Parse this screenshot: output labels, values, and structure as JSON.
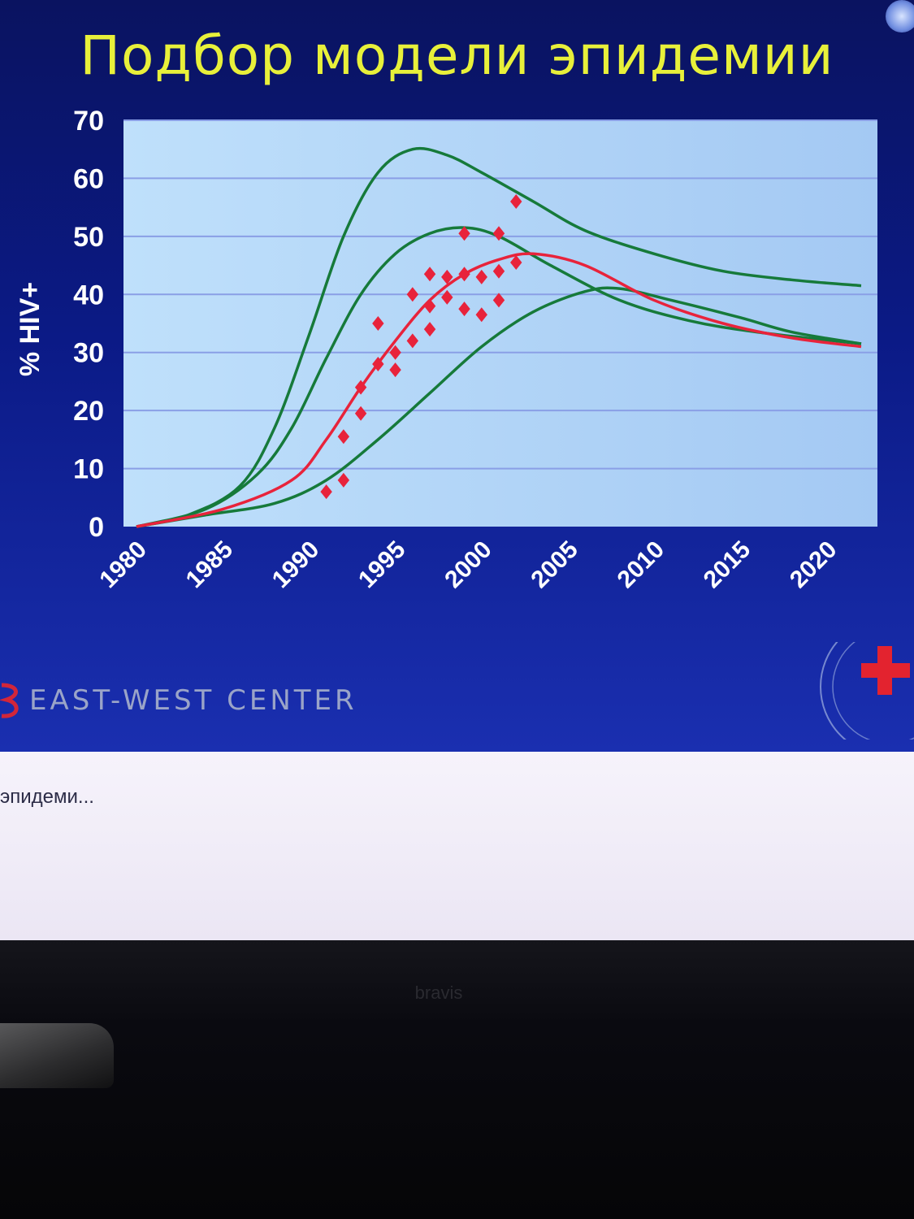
{
  "slide": {
    "title": "Подбор модели эпидемии",
    "logo_text": "EAST-WEST CENTER"
  },
  "taskbar": {
    "label": "эпидеми..."
  },
  "monitor": {
    "brand": "bravis"
  },
  "colors": {
    "title": "#e8f03a",
    "plot_background": "#aed2f7",
    "green_lines": "#167a3a",
    "red_line": "#e8233b",
    "points": "#e8233b"
  },
  "icons": {
    "corner": "globe-icon",
    "emblem": "red-cross-icon"
  },
  "chart_data": {
    "type": "line",
    "title": "Подбор модели эпидемии",
    "xlabel": "",
    "ylabel": "% HIV+",
    "xlim": [
      1980,
      2022
    ],
    "ylim": [
      0,
      70
    ],
    "x_ticks": [
      "1980",
      "1985",
      "1990",
      "1995",
      "2000",
      "2005",
      "2010",
      "2015",
      "2020"
    ],
    "y_ticks": [
      "0",
      "10",
      "20",
      "30",
      "40",
      "50",
      "60",
      "70"
    ],
    "grid": true,
    "legend": "none",
    "series": [
      {
        "kind": "line",
        "color": "#167a3a",
        "points": [
          [
            1980,
            0
          ],
          [
            1983,
            2
          ],
          [
            1986,
            7
          ],
          [
            1988,
            17
          ],
          [
            1990,
            33
          ],
          [
            1992,
            50
          ],
          [
            1994,
            61
          ],
          [
            1996,
            65
          ],
          [
            1998,
            64
          ],
          [
            2000,
            61
          ],
          [
            2003,
            56
          ],
          [
            2006,
            51
          ],
          [
            2010,
            47
          ],
          [
            2014,
            44
          ],
          [
            2018,
            42.5
          ],
          [
            2022,
            41.5
          ]
        ]
      },
      {
        "kind": "line",
        "color": "#167a3a",
        "points": [
          [
            1980,
            0
          ],
          [
            1984,
            3
          ],
          [
            1987,
            9
          ],
          [
            1989,
            17
          ],
          [
            1991,
            29
          ],
          [
            1993,
            40
          ],
          [
            1995,
            47
          ],
          [
            1997,
            50.5
          ],
          [
            1999,
            51.5
          ],
          [
            2001,
            50
          ],
          [
            2004,
            45
          ],
          [
            2008,
            39
          ],
          [
            2012,
            35.5
          ],
          [
            2016,
            33.5
          ],
          [
            2022,
            31.5
          ]
        ]
      },
      {
        "kind": "line",
        "color": "#167a3a",
        "points": [
          [
            1980,
            0
          ],
          [
            1984,
            2
          ],
          [
            1988,
            4
          ],
          [
            1991,
            8
          ],
          [
            1994,
            15
          ],
          [
            1997,
            23
          ],
          [
            2000,
            31
          ],
          [
            2003,
            37
          ],
          [
            2006,
            40.5
          ],
          [
            2008,
            41
          ],
          [
            2011,
            39
          ],
          [
            2015,
            36
          ],
          [
            2018,
            33.5
          ],
          [
            2022,
            31.5
          ]
        ]
      },
      {
        "kind": "line",
        "color": "#e8233b",
        "points": [
          [
            1980,
            0
          ],
          [
            1985,
            3
          ],
          [
            1989,
            8
          ],
          [
            1991,
            15
          ],
          [
            1993,
            24
          ],
          [
            1995,
            32
          ],
          [
            1997,
            39
          ],
          [
            1999,
            43.5
          ],
          [
            2001,
            46
          ],
          [
            2003,
            47
          ],
          [
            2006,
            45
          ],
          [
            2010,
            39
          ],
          [
            2014,
            35
          ],
          [
            2018,
            32.5
          ],
          [
            2022,
            31
          ]
        ]
      },
      {
        "kind": "scatter",
        "color": "#e8233b",
        "points": [
          [
            1991,
            6
          ],
          [
            1992,
            15.5
          ],
          [
            1992,
            8
          ],
          [
            1993,
            19.5
          ],
          [
            1993,
            24
          ],
          [
            1994,
            35
          ],
          [
            1994,
            28
          ],
          [
            1995,
            30
          ],
          [
            1995,
            27
          ],
          [
            1996,
            40
          ],
          [
            1996,
            32
          ],
          [
            1997,
            43.5
          ],
          [
            1997,
            38
          ],
          [
            1997,
            34
          ],
          [
            1998,
            43
          ],
          [
            1998,
            39.5
          ],
          [
            1999,
            50.5
          ],
          [
            1999,
            43.5
          ],
          [
            1999,
            37.5
          ],
          [
            2000,
            43
          ],
          [
            2000,
            36.5
          ],
          [
            2001,
            50.5
          ],
          [
            2001,
            44
          ],
          [
            2001,
            39
          ],
          [
            2002,
            56
          ],
          [
            2002,
            45.5
          ]
        ]
      }
    ]
  }
}
